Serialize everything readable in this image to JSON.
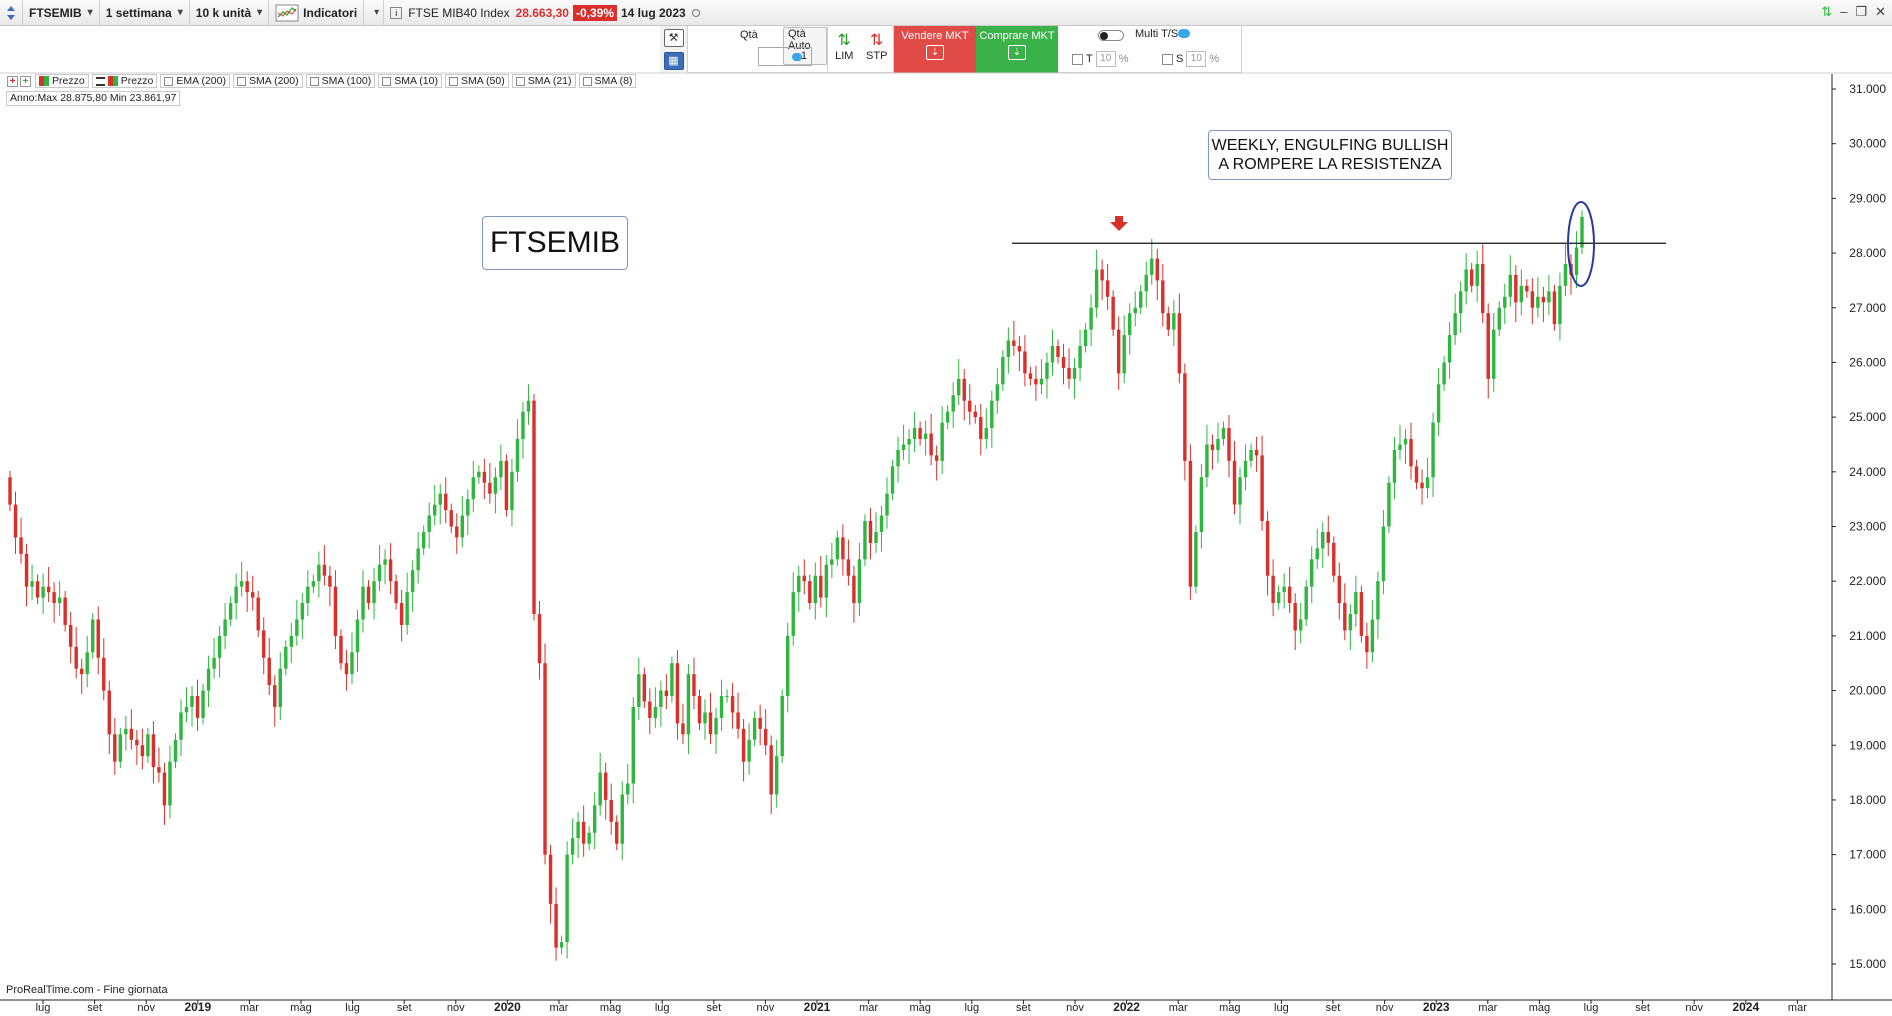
{
  "toolbar": {
    "symbol": "FTSEMIB",
    "timeframe": "1 settimana",
    "units": "10 k unità",
    "indicators_label": "Indicatori",
    "instrument_name": "FTSE MIB40 Index",
    "last_price": "28.663,30",
    "change_pct": "-0,39%",
    "date": "14 lug 2023"
  },
  "order_panel": {
    "qty_label": "Qtà",
    "qty_auto_label": "Qtà Auto",
    "qty_value": "1",
    "lim_label": "LIM",
    "stp_label": "STP",
    "sell_label": "Vendere MKT",
    "buy_label": "Comprare MKT",
    "multi_ts_label": "Multi T/S",
    "t_label": "T",
    "s_label": "S",
    "t_value": "10",
    "s_value": "10",
    "pct_sign": "%"
  },
  "indicator_bar": {
    "items": [
      "Prezzo",
      "Prezzo",
      "EMA (200)",
      "SMA (200)",
      "SMA (100)",
      "SMA (10)",
      "SMA (50)",
      "SMA (21)",
      "SMA (8)"
    ],
    "range_label": "Anno:Max 28.875,80 Min 23.861,97"
  },
  "footer": {
    "source": "ProRealTime.com - Fine giornata"
  },
  "chart_data": {
    "type": "candlestick",
    "title": "FTSEMIB",
    "annotation": [
      "WEEKLY, ENGULFING BULLISH",
      "A ROMPERE LA RESISTENZA"
    ],
    "resistance_level": 28180,
    "ylim": [
      14600,
      31300
    ],
    "y_ticks": [
      "31.000",
      "30.000",
      "29.000",
      "28.000",
      "27.000",
      "26.000",
      "25.000",
      "24.000",
      "23.000",
      "22.000",
      "21.000",
      "20.000",
      "19.000",
      "18.000",
      "17.000",
      "16.000",
      "15.000"
    ],
    "x_ticks": [
      "lug",
      "set",
      "nov",
      "2019",
      "mar",
      "mag",
      "lug",
      "set",
      "nov",
      "2020",
      "mar",
      "mag",
      "lug",
      "set",
      "nov",
      "2021",
      "mar",
      "mag",
      "lug",
      "set",
      "nov",
      "2022",
      "mar",
      "mag",
      "lug",
      "set",
      "nov",
      "2023",
      "mar",
      "mag",
      "lug",
      "set",
      "nov",
      "2024",
      "mar"
    ],
    "bull_color": "#2fb63f",
    "bear_color": "#d9302c",
    "closes": [
      23400,
      22800,
      22500,
      21900,
      22000,
      21700,
      21900,
      21800,
      21600,
      21700,
      21200,
      20800,
      20400,
      20300,
      20700,
      21300,
      20600,
      20000,
      19200,
      18700,
      19200,
      19300,
      19100,
      19000,
      18800,
      19200,
      18600,
      18500,
      17900,
      18700,
      19100,
      19600,
      19700,
      19900,
      19500,
      20000,
      20400,
      20600,
      21000,
      21300,
      21600,
      21900,
      22000,
      21800,
      21700,
      21100,
      20600,
      20100,
      19700,
      20400,
      20800,
      21000,
      21300,
      21600,
      21900,
      22000,
      22300,
      22100,
      21900,
      21000,
      20500,
      20300,
      20700,
      21300,
      21900,
      21600,
      22000,
      22300,
      22400,
      22000,
      21600,
      21200,
      21800,
      22200,
      22600,
      22900,
      23200,
      23400,
      23600,
      23300,
      23000,
      22800,
      23200,
      23500,
      23900,
      24000,
      23800,
      23600,
      23900,
      24200,
      23300,
      24000,
      24600,
      25100,
      25300,
      21400,
      20500,
      17000,
      16100,
      15300,
      15400,
      17000,
      17300,
      17600,
      17200,
      17400,
      17900,
      18500,
      18000,
      17600,
      17200,
      18100,
      18300,
      19700,
      20300,
      19800,
      19500,
      19700,
      20000,
      19900,
      20500,
      19400,
      19200,
      20300,
      19900,
      19400,
      19600,
      19200,
      19500,
      19900,
      19900,
      19600,
      19300,
      18700,
      19100,
      19500,
      19300,
      19000,
      18100,
      18800,
      19900,
      21000,
      21800,
      22100,
      22000,
      21600,
      22100,
      21700,
      22300,
      22400,
      22800,
      22400,
      22100,
      21600,
      22400,
      23100,
      22700,
      22900,
      23200,
      23600,
      24100,
      24400,
      24500,
      24600,
      24800,
      24600,
      24700,
      24300,
      24200,
      24900,
      25100,
      25400,
      25700,
      25300,
      25100,
      25000,
      24600,
      24800,
      25300,
      25600,
      26100,
      26400,
      26300,
      26200,
      25800,
      25700,
      25600,
      25700,
      26000,
      26300,
      26100,
      25900,
      25700,
      25900,
      26300,
      26600,
      27000,
      27700,
      27500,
      27200,
      26600,
      25800,
      26500,
      26900,
      27000,
      27300,
      27600,
      27900,
      27500,
      26900,
      26600,
      26900,
      25800,
      24200,
      21900,
      22900,
      23900,
      24500,
      24400,
      24600,
      24800,
      24200,
      23400,
      23900,
      24200,
      24400,
      24300,
      23100,
      22100,
      21600,
      21800,
      21900,
      21600,
      21100,
      21300,
      21900,
      22400,
      22600,
      22900,
      22700,
      22100,
      21600,
      21100,
      21400,
      21800,
      21000,
      20700,
      21300,
      22000,
      23000,
      23800,
      24400,
      24500,
      24600,
      24100,
      23800,
      23700,
      23900,
      24900,
      25600,
      26000,
      26500,
      26900,
      27300,
      27700,
      27400,
      27800,
      26900,
      25700,
      26600,
      27000,
      27200,
      27600,
      27100,
      27400,
      27300,
      27000,
      27200,
      27100,
      27300,
      26700,
      27400,
      27800,
      27600,
      28100,
      28663
    ]
  }
}
